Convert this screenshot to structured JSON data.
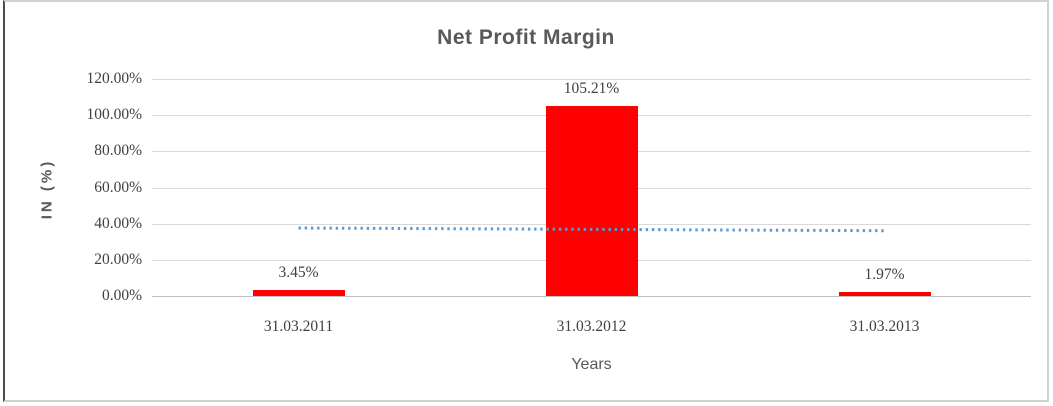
{
  "chart_data": {
    "type": "bar",
    "title": "Net Profit Margin",
    "categories": [
      "31.03.2011",
      "31.03.2012",
      "31.03.2013"
    ],
    "series": [
      {
        "name": "Net Profit Margin",
        "values": [
          3.45,
          105.21,
          1.97
        ],
        "color": "#ff0000"
      }
    ],
    "data_labels": [
      "3.45%",
      "105.21%",
      "1.97%"
    ],
    "trendline": {
      "type": "linear",
      "style": "dotted",
      "color": "#5b9bd5",
      "start_value": 37.6,
      "end_value": 36.1
    },
    "xlabel": "Years",
    "ylabel": "IN (%)",
    "ylim": [
      0,
      120
    ],
    "ytick_step": 20,
    "ytick_labels": [
      "0.00%",
      "20.00%",
      "40.00%",
      "60.00%",
      "80.00%",
      "100.00%",
      "120.00%"
    ],
    "grid": true,
    "legend": false,
    "colors": {
      "bar": "#ff0000",
      "trendline": "#5b9bd5",
      "gridline": "#d9d9d9",
      "title_text": "#595959",
      "tick_text": "#404040"
    }
  }
}
